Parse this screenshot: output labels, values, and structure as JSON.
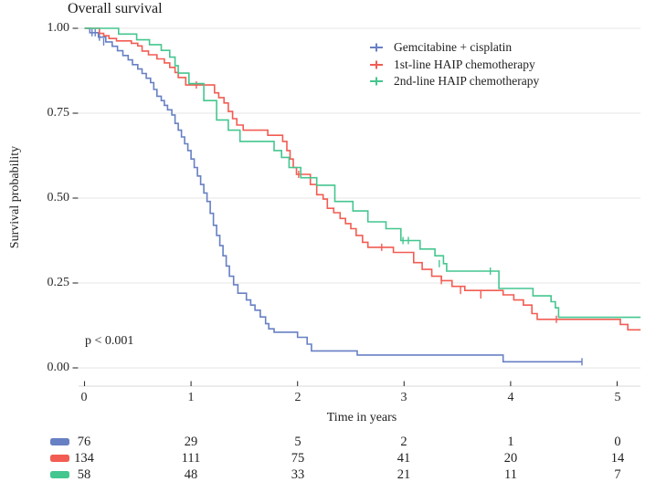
{
  "title": "Overall survival",
  "p_value": "p < 0.001",
  "axes": {
    "x_label": "Time in years",
    "y_label": "Survival probability",
    "x_tick_labels": [
      "0",
      "1",
      "2",
      "3",
      "4",
      "5"
    ],
    "y_tick_labels": [
      "1.00",
      "0.75",
      "0.50",
      "0.25",
      "0.00"
    ]
  },
  "chart_data": {
    "type": "line",
    "subtype": "kaplan-meier-step-curves",
    "title": "Overall survival",
    "xlabel": "Time in years",
    "ylabel": "Survival probability",
    "xlim": [
      0,
      5.25
    ],
    "ylim": [
      0,
      1
    ],
    "x_ticks": [
      0,
      1,
      2,
      3,
      4,
      5
    ],
    "y_ticks": [
      0,
      0.25,
      0.5,
      0.75,
      1
    ],
    "grid": "horizontal-only",
    "legend_position": "inside-top-right",
    "annotation": "p < 0.001",
    "series": [
      {
        "name": "Gemcitabine + cisplatin",
        "color": "#6780c4",
        "steps": [
          [
            0,
            1.0
          ],
          [
            0.05,
            0.987
          ],
          [
            0.13,
            0.974
          ],
          [
            0.2,
            0.96
          ],
          [
            0.26,
            0.947
          ],
          [
            0.31,
            0.934
          ],
          [
            0.36,
            0.92
          ],
          [
            0.41,
            0.907
          ],
          [
            0.45,
            0.893
          ],
          [
            0.5,
            0.88
          ],
          [
            0.54,
            0.867
          ],
          [
            0.58,
            0.853
          ],
          [
            0.62,
            0.84
          ],
          [
            0.65,
            0.82
          ],
          [
            0.68,
            0.8
          ],
          [
            0.72,
            0.787
          ],
          [
            0.75,
            0.773
          ],
          [
            0.78,
            0.76
          ],
          [
            0.82,
            0.745
          ],
          [
            0.85,
            0.72
          ],
          [
            0.88,
            0.7
          ],
          [
            0.91,
            0.68
          ],
          [
            0.94,
            0.66
          ],
          [
            0.97,
            0.64
          ],
          [
            1.0,
            0.615
          ],
          [
            1.03,
            0.59
          ],
          [
            1.06,
            0.565
          ],
          [
            1.09,
            0.54
          ],
          [
            1.12,
            0.515
          ],
          [
            1.15,
            0.49
          ],
          [
            1.18,
            0.455
          ],
          [
            1.21,
            0.42
          ],
          [
            1.24,
            0.39
          ],
          [
            1.27,
            0.36
          ],
          [
            1.3,
            0.33
          ],
          [
            1.33,
            0.3
          ],
          [
            1.36,
            0.27
          ],
          [
            1.4,
            0.245
          ],
          [
            1.44,
            0.22
          ],
          [
            1.52,
            0.2
          ],
          [
            1.56,
            0.185
          ],
          [
            1.6,
            0.17
          ],
          [
            1.65,
            0.15
          ],
          [
            1.7,
            0.13
          ],
          [
            1.73,
            0.115
          ],
          [
            1.78,
            0.105
          ],
          [
            2.0,
            0.09
          ],
          [
            2.09,
            0.07
          ],
          [
            2.13,
            0.05
          ],
          [
            2.56,
            0.038
          ],
          [
            3.93,
            0.018
          ],
          [
            4.67,
            0.018
          ]
        ],
        "censors": [
          [
            0.07,
            0.987
          ],
          [
            0.1,
            0.987
          ],
          [
            0.14,
            0.974
          ],
          [
            0.18,
            0.96
          ],
          [
            4.67,
            0.018
          ]
        ]
      },
      {
        "name": "1st-line HAIP chemotherapy",
        "color": "#f25c52",
        "steps": [
          [
            0,
            1.0
          ],
          [
            0.14,
            0.985
          ],
          [
            0.18,
            0.978
          ],
          [
            0.23,
            0.97
          ],
          [
            0.3,
            0.963
          ],
          [
            0.44,
            0.956
          ],
          [
            0.5,
            0.948
          ],
          [
            0.54,
            0.933
          ],
          [
            0.6,
            0.922
          ],
          [
            0.68,
            0.91
          ],
          [
            0.75,
            0.898
          ],
          [
            0.8,
            0.885
          ],
          [
            0.85,
            0.87
          ],
          [
            0.88,
            0.855
          ],
          [
            0.95,
            0.833
          ],
          [
            1.22,
            0.81
          ],
          [
            1.26,
            0.796
          ],
          [
            1.31,
            0.78
          ],
          [
            1.35,
            0.755
          ],
          [
            1.39,
            0.734
          ],
          [
            1.43,
            0.715
          ],
          [
            1.49,
            0.7
          ],
          [
            1.72,
            0.685
          ],
          [
            1.86,
            0.667
          ],
          [
            1.9,
            0.64
          ],
          [
            1.93,
            0.615
          ],
          [
            1.96,
            0.59
          ],
          [
            1.99,
            0.57
          ],
          [
            2.12,
            0.54
          ],
          [
            2.18,
            0.51
          ],
          [
            2.24,
            0.497
          ],
          [
            2.28,
            0.47
          ],
          [
            2.34,
            0.457
          ],
          [
            2.4,
            0.44
          ],
          [
            2.45,
            0.425
          ],
          [
            2.5,
            0.41
          ],
          [
            2.55,
            0.39
          ],
          [
            2.61,
            0.37
          ],
          [
            2.66,
            0.355
          ],
          [
            2.9,
            0.34
          ],
          [
            3.09,
            0.31
          ],
          [
            3.17,
            0.29
          ],
          [
            3.26,
            0.27
          ],
          [
            3.35,
            0.257
          ],
          [
            3.45,
            0.24
          ],
          [
            3.57,
            0.228
          ],
          [
            3.93,
            0.215
          ],
          [
            4.03,
            0.2
          ],
          [
            4.12,
            0.185
          ],
          [
            4.2,
            0.16
          ],
          [
            4.25,
            0.143
          ],
          [
            5.03,
            0.128
          ],
          [
            5.1,
            0.112
          ],
          [
            5.22,
            0.112
          ]
        ],
        "censors": [
          [
            1.05,
            0.833
          ],
          [
            2.01,
            0.57
          ],
          [
            2.79,
            0.355
          ],
          [
            3.35,
            0.257
          ],
          [
            3.53,
            0.228
          ],
          [
            3.72,
            0.215
          ],
          [
            4.43,
            0.143
          ]
        ]
      },
      {
        "name": "2nd-line HAIP chemotherapy",
        "color": "#44c68f",
        "steps": [
          [
            0,
            1.0
          ],
          [
            0.32,
            0.983
          ],
          [
            0.49,
            0.966
          ],
          [
            0.61,
            0.952
          ],
          [
            0.72,
            0.935
          ],
          [
            0.8,
            0.915
          ],
          [
            0.85,
            0.89
          ],
          [
            0.88,
            0.868
          ],
          [
            0.98,
            0.837
          ],
          [
            1.12,
            0.787
          ],
          [
            1.24,
            0.73
          ],
          [
            1.35,
            0.7
          ],
          [
            1.46,
            0.667
          ],
          [
            1.78,
            0.64
          ],
          [
            1.85,
            0.62
          ],
          [
            1.92,
            0.59
          ],
          [
            2.03,
            0.56
          ],
          [
            2.18,
            0.538
          ],
          [
            2.35,
            0.49
          ],
          [
            2.52,
            0.462
          ],
          [
            2.66,
            0.43
          ],
          [
            2.83,
            0.41
          ],
          [
            2.97,
            0.375
          ],
          [
            3.15,
            0.35
          ],
          [
            3.29,
            0.33
          ],
          [
            3.37,
            0.307
          ],
          [
            3.4,
            0.285
          ],
          [
            3.89,
            0.234
          ],
          [
            4.21,
            0.212
          ],
          [
            4.38,
            0.195
          ],
          [
            4.42,
            0.177
          ],
          [
            4.45,
            0.149
          ],
          [
            5.22,
            0.149
          ]
        ],
        "censors": [
          [
            2.99,
            0.375
          ],
          [
            3.04,
            0.375
          ],
          [
            3.33,
            0.307
          ],
          [
            3.81,
            0.285
          ]
        ]
      }
    ],
    "risk_table": {
      "times": [
        0,
        1,
        2,
        3,
        4,
        5
      ],
      "rows": [
        {
          "group": "Gemcitabine + cisplatin",
          "color": "#6780c4",
          "counts": [
            "76",
            "29",
            "5",
            "2",
            "1",
            "0"
          ]
        },
        {
          "group": "1st-line HAIP chemotherapy",
          "color": "#f25c52",
          "counts": [
            "134",
            "111",
            "75",
            "41",
            "20",
            "14"
          ]
        },
        {
          "group": "2nd-line HAIP chemotherapy",
          "color": "#44c68f",
          "counts": [
            "58",
            "48",
            "33",
            "21",
            "11",
            "7"
          ]
        }
      ]
    }
  }
}
